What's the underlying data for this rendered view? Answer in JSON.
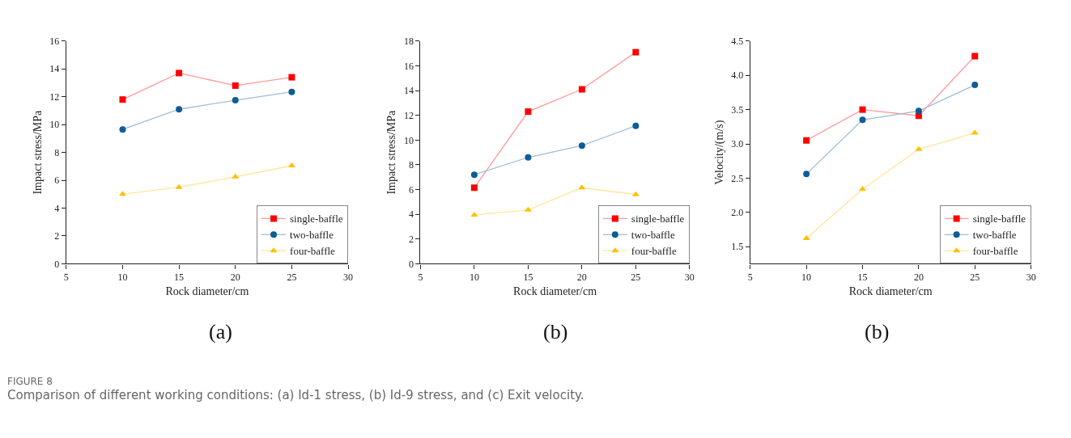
{
  "chart_data": [
    {
      "type": "line",
      "xlabel": "Rock diameter/cm",
      "ylabel": "Impact stress/MPa",
      "x": [
        10,
        15,
        20,
        25
      ],
      "xlim": [
        5,
        30
      ],
      "xticks": [
        5,
        10,
        15,
        20,
        25,
        30
      ],
      "ylim": [
        0,
        16
      ],
      "yticks": [
        0,
        2,
        4,
        6,
        8,
        10,
        12,
        14,
        16
      ],
      "legend": "bottom right",
      "series": [
        {
          "name": "single-baffle",
          "color": "#ff0000",
          "marker": "square",
          "values": [
            11.8,
            13.7,
            12.8,
            13.4
          ]
        },
        {
          "name": "two-baffle",
          "color": "#0f5c96",
          "marker": "circle",
          "values": [
            9.65,
            11.1,
            11.75,
            12.35
          ]
        },
        {
          "name": "four-baffle",
          "color": "#ffc000",
          "marker": "triangle",
          "values": [
            5.0,
            5.5,
            6.25,
            7.05
          ]
        }
      ],
      "annotations": [
        "(a)",
        "FIGURE 8",
        "Comparison of different working conditions: (a) Id-1 stress, (b) Id-9 stress, and (c) Exit velocity."
      ]
    },
    {
      "type": "line",
      "xlabel": "Rock diameter/cm",
      "ylabel": "Impact stress/MPa",
      "x": [
        10,
        15,
        20,
        25
      ],
      "xlim": [
        5,
        30
      ],
      "xticks": [
        5,
        10,
        15,
        20,
        25,
        30
      ],
      "ylim": [
        0,
        18
      ],
      "yticks": [
        0,
        2,
        4,
        6,
        8,
        10,
        12,
        14,
        16,
        18
      ],
      "legend": "bottom right",
      "series": [
        {
          "name": "single-baffle",
          "color": "#ff0000",
          "marker": "square",
          "values": [
            6.15,
            12.3,
            14.1,
            17.1
          ]
        },
        {
          "name": "two-baffle",
          "color": "#0f5c96",
          "marker": "circle",
          "values": [
            7.2,
            8.6,
            9.55,
            11.15
          ]
        },
        {
          "name": "four-baffle",
          "color": "#ffc000",
          "marker": "triangle",
          "values": [
            3.95,
            4.35,
            6.15,
            5.6
          ]
        }
      ],
      "annotations": [
        "(b)"
      ]
    },
    {
      "type": "line",
      "xlabel": "Rock diameter/cm",
      "ylabel": "Velocity/(m/s)",
      "x": [
        10,
        15,
        20,
        25
      ],
      "xlim": [
        5,
        30
      ],
      "xticks": [
        5,
        10,
        15,
        20,
        25,
        30
      ],
      "ylim": [
        1.25,
        4.5
      ],
      "yticks": [
        1.5,
        {
          "value": 2,
          "label": "2.0"
        },
        2.5,
        {
          "value": 3,
          "label": "3.0"
        },
        3.5,
        {
          "value": 4,
          "label": "4.0"
        },
        4.5
      ],
      "legend": "bottom right",
      "series": [
        {
          "name": "single-baffle",
          "color": "#ff0000",
          "marker": "square",
          "values": [
            3.05,
            3.5,
            3.41,
            4.28
          ]
        },
        {
          "name": "two-baffle",
          "color": "#0f5c96",
          "marker": "circle",
          "values": [
            2.56,
            3.35,
            3.48,
            3.86
          ]
        },
        {
          "name": "four-baffle",
          "color": "#ffc000",
          "marker": "triangle",
          "values": [
            1.62,
            2.34,
            2.92,
            3.16
          ]
        }
      ],
      "annotations": [
        "(b)"
      ]
    }
  ]
}
